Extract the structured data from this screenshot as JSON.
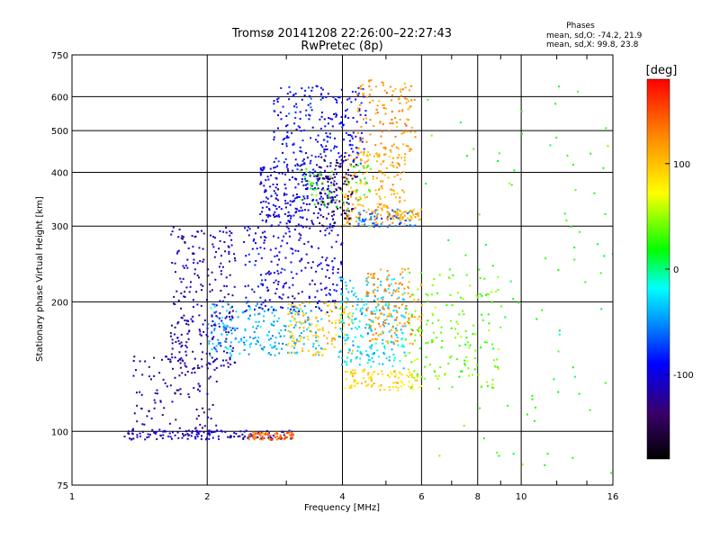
{
  "chart_data": {
    "type": "scatter",
    "title": "Tromsø 20141208 22:26:00–22:27:43",
    "subtitle": "RwPretec (8p)",
    "xlabel": "Frequency [MHz]",
    "ylabel": "Stationary phase Virtual Height [km]",
    "x_scale": "log",
    "y_scale": "log",
    "xlim": [
      1,
      16
    ],
    "ylim": [
      75,
      750
    ],
    "x_ticks": [
      1,
      2,
      4,
      6,
      8,
      10,
      16
    ],
    "x_tick_labels": [
      "1",
      "2",
      "4",
      "6",
      "8",
      "10",
      "16"
    ],
    "y_ticks": [
      75,
      100,
      200,
      300,
      400,
      500,
      600,
      750
    ],
    "y_tick_labels": [
      "75",
      "100",
      "200",
      "300",
      "400",
      "500",
      "600",
      "750"
    ],
    "grid": true,
    "stats": {
      "heading": "Phases",
      "line1": "mean, sd,O: -74.2, 21.9",
      "line2": "mean, sd,X:  99.8, 23.8"
    },
    "colorbar": {
      "label": "[deg]",
      "range": [
        -180,
        180
      ],
      "ticks": [
        100,
        0,
        -100
      ],
      "tick_labels": [
        "100",
        "0",
        "-100"
      ],
      "colormap": "rainbow (black-purple-blue-cyan-green-yellow-red)"
    },
    "clusters": [
      {
        "f": [
          1.3,
          3.1
        ],
        "h": [
          96,
          101
        ],
        "c": -110,
        "n": 140
      },
      {
        "f": [
          2.45,
          3.1
        ],
        "h": [
          96,
          100
        ],
        "c": 140,
        "n": 70
      },
      {
        "f": [
          1.35,
          2.1
        ],
        "h": [
          100,
          150
        ],
        "c": -120,
        "n": 110
      },
      {
        "f": [
          1.65,
          2.3
        ],
        "h": [
          140,
          300
        ],
        "c": -115,
        "n": 260
      },
      {
        "f": [
          2.0,
          3.6
        ],
        "h": [
          150,
          200
        ],
        "c": -40,
        "n": 220
      },
      {
        "f": [
          2.4,
          4.0
        ],
        "h": [
          190,
          300
        ],
        "c": -100,
        "n": 220
      },
      {
        "f": [
          2.6,
          3.9
        ],
        "h": [
          300,
          420
        ],
        "c": -100,
        "n": 260
      },
      {
        "f": [
          2.8,
          4.5
        ],
        "h": [
          420,
          640
        ],
        "c": -90,
        "n": 230
      },
      {
        "f": [
          3.5,
          4.3
        ],
        "h": [
          300,
          440
        ],
        "c": -150,
        "n": 110
      },
      {
        "f": [
          4.0,
          5.5
        ],
        "h": [
          300,
          450
        ],
        "c": 110,
        "n": 200
      },
      {
        "f": [
          4.3,
          5.8
        ],
        "h": [
          450,
          660
        ],
        "c": 120,
        "n": 120
      },
      {
        "f": [
          3.0,
          4.2
        ],
        "h": [
          150,
          200
        ],
        "c": 100,
        "n": 130
      },
      {
        "f": [
          3.9,
          5.5
        ],
        "h": [
          140,
          230
        ],
        "c": -30,
        "n": 230
      },
      {
        "f": [
          4.5,
          6.0
        ],
        "h": [
          160,
          240
        ],
        "c": 120,
        "n": 140
      },
      {
        "f": [
          5.5,
          9.0
        ],
        "h": [
          125,
          240
        ],
        "c": 40,
        "n": 160
      },
      {
        "f": [
          4.0,
          6.0
        ],
        "h": [
          125,
          140
        ],
        "c": 90,
        "n": 100
      },
      {
        "f": [
          4.3,
          5.8
        ],
        "h": [
          300,
          330
        ],
        "c": -60,
        "n": 60
      },
      {
        "f": [
          5.0,
          6.0
        ],
        "h": [
          310,
          330
        ],
        "c": 110,
        "n": 40
      },
      {
        "f": [
          3.2,
          4.6
        ],
        "h": [
          330,
          420
        ],
        "c": 30,
        "n": 60
      },
      {
        "f": [
          6.0,
          16.0
        ],
        "h": [
          80,
          650
        ],
        "c": 20,
        "n": 90
      }
    ]
  }
}
